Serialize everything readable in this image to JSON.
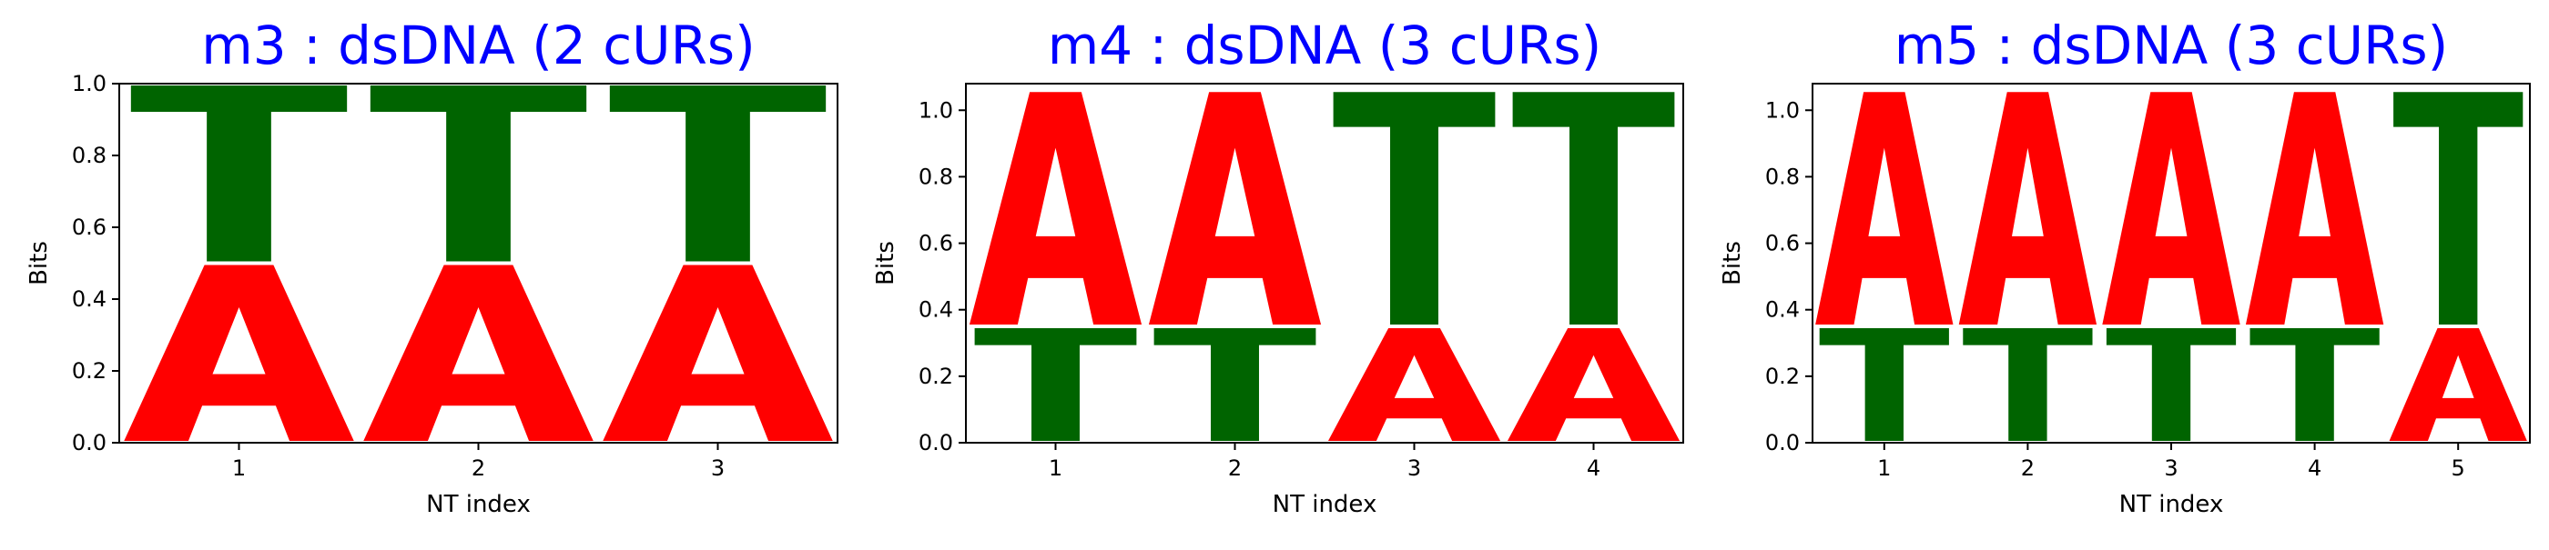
{
  "colors": {
    "A": "#ff0000",
    "T": "#006400",
    "title": "#0000ff"
  },
  "chart_data": [
    {
      "type": "sequence-logo",
      "title": "m3 : dsDNA (2 cURs)",
      "xlabel": "NT index",
      "ylabel": "Bits",
      "categories": [
        "1",
        "2",
        "3"
      ],
      "ylim": [
        0,
        1.0
      ],
      "yticks": [
        "0.0",
        "0.2",
        "0.4",
        "0.6",
        "0.8",
        "1.0"
      ],
      "positions": [
        [
          {
            "letter": "A",
            "bits": 0.5
          },
          {
            "letter": "T",
            "bits": 0.5
          }
        ],
        [
          {
            "letter": "A",
            "bits": 0.5
          },
          {
            "letter": "T",
            "bits": 0.5
          }
        ],
        [
          {
            "letter": "A",
            "bits": 0.5
          },
          {
            "letter": "T",
            "bits": 0.5
          }
        ]
      ]
    },
    {
      "type": "sequence-logo",
      "title": "m4 : dsDNA (3 cURs)",
      "xlabel": "NT index",
      "ylabel": "Bits",
      "categories": [
        "1",
        "2",
        "3",
        "4"
      ],
      "ylim": [
        0,
        1.08
      ],
      "yticks": [
        "0.0",
        "0.2",
        "0.4",
        "0.6",
        "0.8",
        "1.0"
      ],
      "positions": [
        [
          {
            "letter": "T",
            "bits": 0.35
          },
          {
            "letter": "A",
            "bits": 0.71
          }
        ],
        [
          {
            "letter": "T",
            "bits": 0.35
          },
          {
            "letter": "A",
            "bits": 0.71
          }
        ],
        [
          {
            "letter": "A",
            "bits": 0.35
          },
          {
            "letter": "T",
            "bits": 0.71
          }
        ],
        [
          {
            "letter": "A",
            "bits": 0.35
          },
          {
            "letter": "T",
            "bits": 0.71
          }
        ]
      ]
    },
    {
      "type": "sequence-logo",
      "title": "m5 : dsDNA (3 cURs)",
      "xlabel": "NT index",
      "ylabel": "Bits",
      "categories": [
        "1",
        "2",
        "3",
        "4",
        "5"
      ],
      "ylim": [
        0,
        1.08
      ],
      "yticks": [
        "0.0",
        "0.2",
        "0.4",
        "0.6",
        "0.8",
        "1.0"
      ],
      "positions": [
        [
          {
            "letter": "T",
            "bits": 0.35
          },
          {
            "letter": "A",
            "bits": 0.71
          }
        ],
        [
          {
            "letter": "T",
            "bits": 0.35
          },
          {
            "letter": "A",
            "bits": 0.71
          }
        ],
        [
          {
            "letter": "T",
            "bits": 0.35
          },
          {
            "letter": "A",
            "bits": 0.71
          }
        ],
        [
          {
            "letter": "T",
            "bits": 0.35
          },
          {
            "letter": "A",
            "bits": 0.71
          }
        ],
        [
          {
            "letter": "A",
            "bits": 0.35
          },
          {
            "letter": "T",
            "bits": 0.71
          }
        ]
      ]
    }
  ]
}
